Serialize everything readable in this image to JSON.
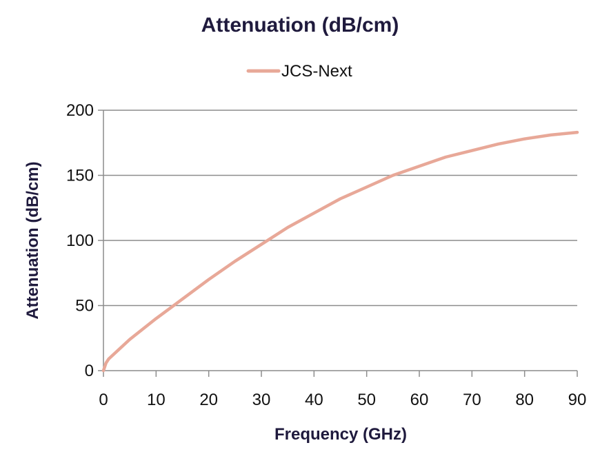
{
  "chart_data": {
    "type": "line",
    "title": "Attenuation (dB/cm)",
    "xlabel": "Frequency (GHz)",
    "ylabel": "Attenuation (dB/cm)",
    "xlim": [
      0,
      90
    ],
    "ylim": [
      0,
      200
    ],
    "xticks": [
      0,
      10,
      20,
      30,
      40,
      50,
      60,
      70,
      80,
      90
    ],
    "yticks": [
      0,
      50,
      100,
      150,
      200
    ],
    "grid": "horizontal",
    "legend_position": "top-center",
    "series": [
      {
        "name": "JCS-Next",
        "color": "#e8a898",
        "x": [
          0,
          0.5,
          1,
          5,
          10,
          15,
          20,
          25,
          30,
          35,
          40,
          45,
          50,
          55,
          60,
          65,
          70,
          75,
          80,
          85,
          90
        ],
        "y": [
          0,
          6,
          9,
          24,
          40,
          55,
          70,
          84,
          97,
          110,
          121,
          132,
          141,
          150,
          157,
          164,
          169,
          174,
          178,
          181,
          183
        ]
      }
    ]
  }
}
